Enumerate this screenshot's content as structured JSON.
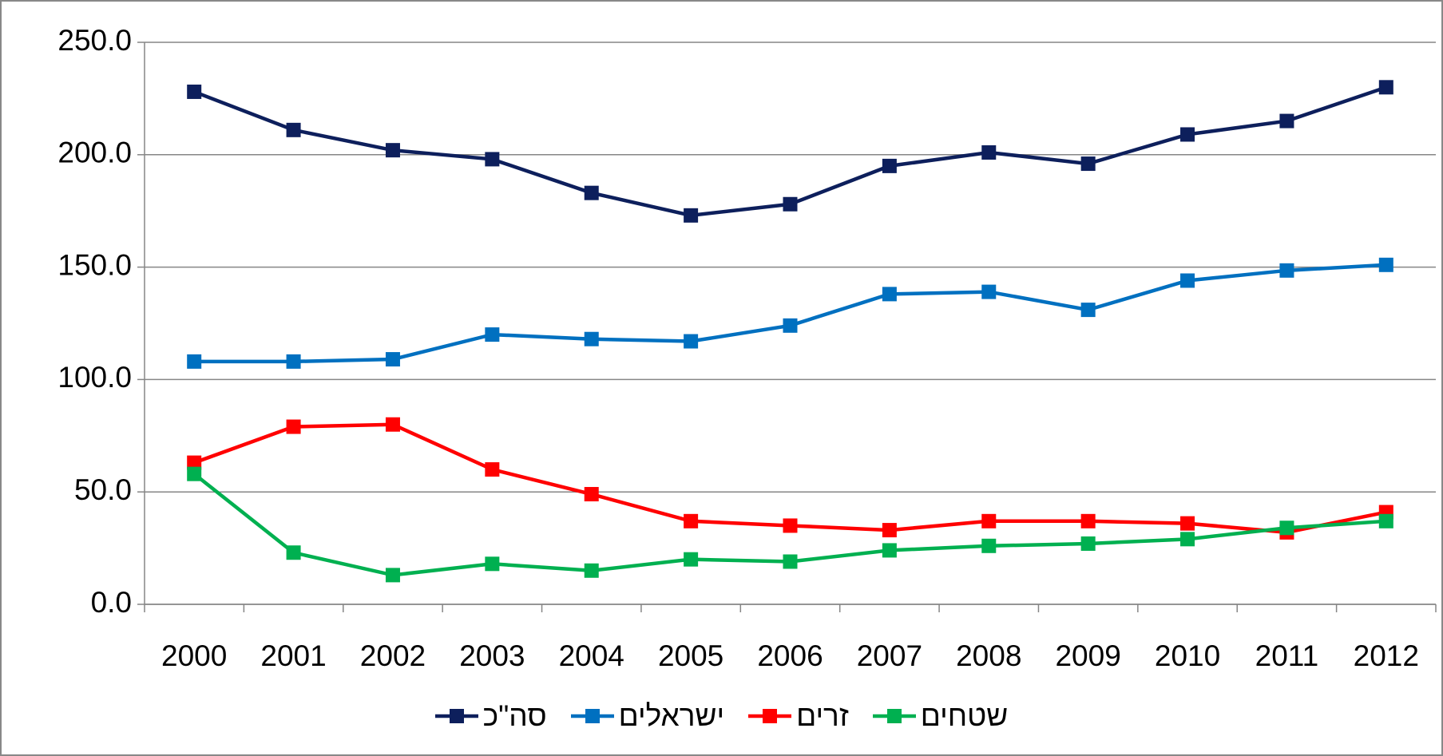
{
  "chart_data": {
    "type": "line",
    "categories": [
      "2000",
      "2001",
      "2002",
      "2003",
      "2004",
      "2005",
      "2006",
      "2007",
      "2008",
      "2009",
      "2010",
      "2011",
      "2012"
    ],
    "series": [
      {
        "name": "סה\"כ",
        "color": "#0d1f5c",
        "values": [
          228,
          211,
          202,
          198,
          183,
          173,
          178,
          195,
          201,
          196,
          209,
          215,
          230
        ]
      },
      {
        "name": "ישראלים",
        "color": "#0070c0",
        "values": [
          108,
          108,
          109,
          120,
          118,
          117,
          124,
          138,
          139,
          131,
          144,
          148.5,
          151
        ]
      },
      {
        "name": "זרים",
        "color": "#ff0000",
        "values": [
          63,
          79,
          80,
          60,
          49,
          37,
          35,
          33,
          37,
          37,
          36,
          32,
          41
        ]
      },
      {
        "name": "שטחים",
        "color": "#00b050",
        "values": [
          58,
          23,
          13,
          18,
          15,
          20,
          19,
          24,
          26,
          27,
          29,
          34,
          37
        ]
      }
    ],
    "ylim": [
      0,
      250
    ],
    "yticks": [
      {
        "value": 0,
        "label": "0.0"
      },
      {
        "value": 50,
        "label": "50.0"
      },
      {
        "value": 100,
        "label": "100.0"
      },
      {
        "value": 150,
        "label": "150.0"
      },
      {
        "value": 200,
        "label": "200.0"
      },
      {
        "value": 250,
        "label": "250.0"
      }
    ],
    "grid": true,
    "legend": "bottom"
  }
}
